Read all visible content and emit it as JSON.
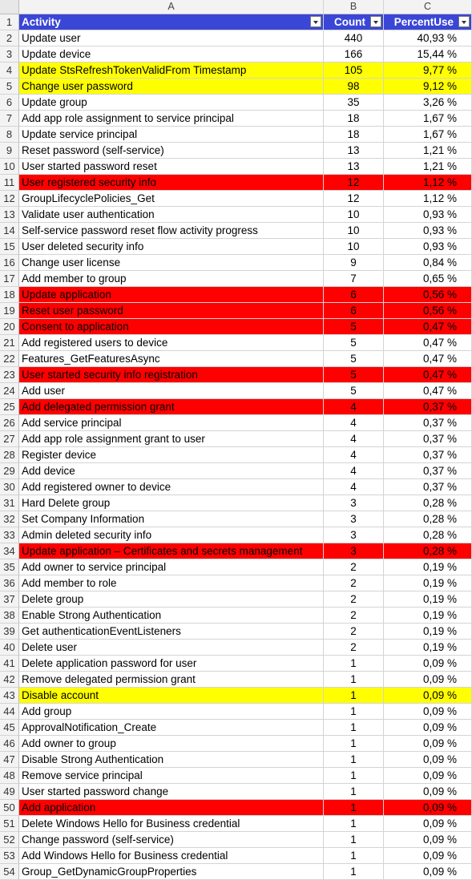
{
  "column_headers": [
    "A",
    "B",
    "C"
  ],
  "header": {
    "row_number": "1",
    "activity": "Activity",
    "count": "Count",
    "percent": "PercentUse"
  },
  "highlight_colors": {
    "yellow": "#ffff00",
    "red": "#ff0000",
    "header_blue": "#3a46d6"
  },
  "rows": [
    {
      "n": "2",
      "activity": "Update user",
      "count": "440",
      "percent": "40,93 %",
      "hl": ""
    },
    {
      "n": "3",
      "activity": "Update device",
      "count": "166",
      "percent": "15,44 %",
      "hl": ""
    },
    {
      "n": "4",
      "activity": "Update StsRefreshTokenValidFrom Timestamp",
      "count": "105",
      "percent": "9,77 %",
      "hl": "yellow"
    },
    {
      "n": "5",
      "activity": "Change user password",
      "count": "98",
      "percent": "9,12 %",
      "hl": "yellow"
    },
    {
      "n": "6",
      "activity": "Update group",
      "count": "35",
      "percent": "3,26 %",
      "hl": ""
    },
    {
      "n": "7",
      "activity": "Add app role assignment to service principal",
      "count": "18",
      "percent": "1,67 %",
      "hl": ""
    },
    {
      "n": "8",
      "activity": "Update service principal",
      "count": "18",
      "percent": "1,67 %",
      "hl": ""
    },
    {
      "n": "9",
      "activity": "Reset password (self-service)",
      "count": "13",
      "percent": "1,21 %",
      "hl": ""
    },
    {
      "n": "10",
      "activity": "User started password reset",
      "count": "13",
      "percent": "1,21 %",
      "hl": ""
    },
    {
      "n": "11",
      "activity": "User registered security info",
      "count": "12",
      "percent": "1,12 %",
      "hl": "red"
    },
    {
      "n": "12",
      "activity": "GroupLifecyclePolicies_Get",
      "count": "12",
      "percent": "1,12 %",
      "hl": ""
    },
    {
      "n": "13",
      "activity": "Validate user authentication",
      "count": "10",
      "percent": "0,93 %",
      "hl": ""
    },
    {
      "n": "14",
      "activity": "Self-service password reset flow activity progress",
      "count": "10",
      "percent": "0,93 %",
      "hl": ""
    },
    {
      "n": "15",
      "activity": "User deleted security info",
      "count": "10",
      "percent": "0,93 %",
      "hl": ""
    },
    {
      "n": "16",
      "activity": "Change user license",
      "count": "9",
      "percent": "0,84 %",
      "hl": ""
    },
    {
      "n": "17",
      "activity": "Add member to group",
      "count": "7",
      "percent": "0,65 %",
      "hl": ""
    },
    {
      "n": "18",
      "activity": "Update application",
      "count": "6",
      "percent": "0,56 %",
      "hl": "red"
    },
    {
      "n": "19",
      "activity": "Reset user password",
      "count": "6",
      "percent": "0,56 %",
      "hl": "red"
    },
    {
      "n": "20",
      "activity": "Consent to application",
      "count": "5",
      "percent": "0,47 %",
      "hl": "red"
    },
    {
      "n": "21",
      "activity": "Add registered users to device",
      "count": "5",
      "percent": "0,47 %",
      "hl": ""
    },
    {
      "n": "22",
      "activity": "Features_GetFeaturesAsync",
      "count": "5",
      "percent": "0,47 %",
      "hl": ""
    },
    {
      "n": "23",
      "activity": "User started security info registration",
      "count": "5",
      "percent": "0,47 %",
      "hl": "red"
    },
    {
      "n": "24",
      "activity": "Add user",
      "count": "5",
      "percent": "0,47 %",
      "hl": ""
    },
    {
      "n": "25",
      "activity": "Add delegated permission grant",
      "count": "4",
      "percent": "0,37 %",
      "hl": "red"
    },
    {
      "n": "26",
      "activity": "Add service principal",
      "count": "4",
      "percent": "0,37 %",
      "hl": ""
    },
    {
      "n": "27",
      "activity": "Add app role assignment grant to user",
      "count": "4",
      "percent": "0,37 %",
      "hl": ""
    },
    {
      "n": "28",
      "activity": "Register device",
      "count": "4",
      "percent": "0,37 %",
      "hl": ""
    },
    {
      "n": "29",
      "activity": "Add device",
      "count": "4",
      "percent": "0,37 %",
      "hl": ""
    },
    {
      "n": "30",
      "activity": "Add registered owner to device",
      "count": "4",
      "percent": "0,37 %",
      "hl": ""
    },
    {
      "n": "31",
      "activity": "Hard Delete group",
      "count": "3",
      "percent": "0,28 %",
      "hl": ""
    },
    {
      "n": "32",
      "activity": "Set Company Information",
      "count": "3",
      "percent": "0,28 %",
      "hl": ""
    },
    {
      "n": "33",
      "activity": "Admin deleted security info",
      "count": "3",
      "percent": "0,28 %",
      "hl": ""
    },
    {
      "n": "34",
      "activity": "Update application – Certificates and secrets management",
      "count": "3",
      "percent": "0,28 %",
      "hl": "red"
    },
    {
      "n": "35",
      "activity": "Add owner to service principal",
      "count": "2",
      "percent": "0,19 %",
      "hl": ""
    },
    {
      "n": "36",
      "activity": "Add member to role",
      "count": "2",
      "percent": "0,19 %",
      "hl": ""
    },
    {
      "n": "37",
      "activity": "Delete group",
      "count": "2",
      "percent": "0,19 %",
      "hl": ""
    },
    {
      "n": "38",
      "activity": "Enable Strong Authentication",
      "count": "2",
      "percent": "0,19 %",
      "hl": ""
    },
    {
      "n": "39",
      "activity": "Get authenticationEventListeners",
      "count": "2",
      "percent": "0,19 %",
      "hl": ""
    },
    {
      "n": "40",
      "activity": "Delete user",
      "count": "2",
      "percent": "0,19 %",
      "hl": ""
    },
    {
      "n": "41",
      "activity": "Delete application password for user",
      "count": "1",
      "percent": "0,09 %",
      "hl": ""
    },
    {
      "n": "42",
      "activity": "Remove delegated permission grant",
      "count": "1",
      "percent": "0,09 %",
      "hl": ""
    },
    {
      "n": "43",
      "activity": "Disable account",
      "count": "1",
      "percent": "0,09 %",
      "hl": "yellow"
    },
    {
      "n": "44",
      "activity": "Add group",
      "count": "1",
      "percent": "0,09 %",
      "hl": ""
    },
    {
      "n": "45",
      "activity": "ApprovalNotification_Create",
      "count": "1",
      "percent": "0,09 %",
      "hl": ""
    },
    {
      "n": "46",
      "activity": "Add owner to group",
      "count": "1",
      "percent": "0,09 %",
      "hl": ""
    },
    {
      "n": "47",
      "activity": "Disable Strong Authentication",
      "count": "1",
      "percent": "0,09 %",
      "hl": ""
    },
    {
      "n": "48",
      "activity": "Remove service principal",
      "count": "1",
      "percent": "0,09 %",
      "hl": ""
    },
    {
      "n": "49",
      "activity": "User started password change",
      "count": "1",
      "percent": "0,09 %",
      "hl": ""
    },
    {
      "n": "50",
      "activity": "Add application",
      "count": "1",
      "percent": "0,09 %",
      "hl": "red"
    },
    {
      "n": "51",
      "activity": "Delete Windows Hello for Business credential",
      "count": "1",
      "percent": "0,09 %",
      "hl": ""
    },
    {
      "n": "52",
      "activity": "Change password (self-service)",
      "count": "1",
      "percent": "0,09 %",
      "hl": ""
    },
    {
      "n": "53",
      "activity": "Add Windows Hello for Business credential",
      "count": "1",
      "percent": "0,09 %",
      "hl": ""
    },
    {
      "n": "54",
      "activity": "Group_GetDynamicGroupProperties",
      "count": "1",
      "percent": "0,09 %",
      "hl": ""
    }
  ]
}
